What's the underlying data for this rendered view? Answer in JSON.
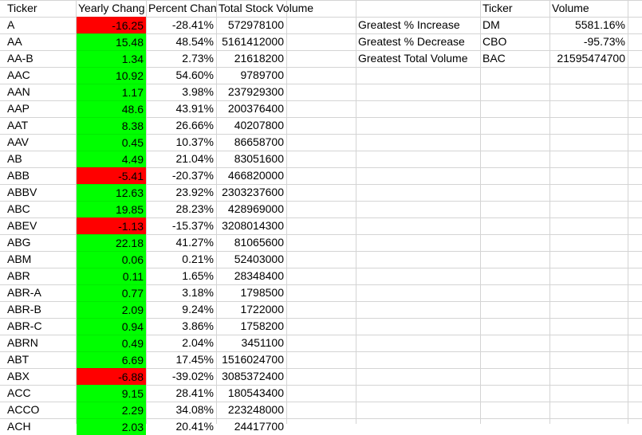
{
  "headers": {
    "ticker": "Ticker",
    "yearly_change": "Yearly Chang",
    "percent_change": "Percent Chan",
    "total_stock_volume": "Total Stock Volume",
    "summary_ticker": "Ticker",
    "summary_volume": "Volume"
  },
  "summary": [
    {
      "label": "Greatest % Increase",
      "ticker": "DM",
      "value": "5581.16%"
    },
    {
      "label": "Greatest % Decrease",
      "ticker": "CBO",
      "value": "-95.73%"
    },
    {
      "label": "Greatest Total Volume",
      "ticker": "BAC",
      "value": "21595474700"
    }
  ],
  "colors": {
    "positive": "#00ff00",
    "negative": "#ff0000",
    "gridline": "#d4d4d4"
  },
  "rows": [
    {
      "ticker": "A",
      "yearly_change": "-16.25",
      "percent_change": "-28.41%",
      "volume": "572978100",
      "sign": "neg"
    },
    {
      "ticker": "AA",
      "yearly_change": "15.48",
      "percent_change": "48.54%",
      "volume": "5161412000",
      "sign": "pos"
    },
    {
      "ticker": "AA-B",
      "yearly_change": "1.34",
      "percent_change": "2.73%",
      "volume": "21618200",
      "sign": "pos"
    },
    {
      "ticker": "AAC",
      "yearly_change": "10.92",
      "percent_change": "54.60%",
      "volume": "9789700",
      "sign": "pos"
    },
    {
      "ticker": "AAN",
      "yearly_change": "1.17",
      "percent_change": "3.98%",
      "volume": "237929300",
      "sign": "pos"
    },
    {
      "ticker": "AAP",
      "yearly_change": "48.6",
      "percent_change": "43.91%",
      "volume": "200376400",
      "sign": "pos"
    },
    {
      "ticker": "AAT",
      "yearly_change": "8.38",
      "percent_change": "26.66%",
      "volume": "40207800",
      "sign": "pos"
    },
    {
      "ticker": "AAV",
      "yearly_change": "0.45",
      "percent_change": "10.37%",
      "volume": "86658700",
      "sign": "pos"
    },
    {
      "ticker": "AB",
      "yearly_change": "4.49",
      "percent_change": "21.04%",
      "volume": "83051600",
      "sign": "pos"
    },
    {
      "ticker": "ABB",
      "yearly_change": "-5.41",
      "percent_change": "-20.37%",
      "volume": "466820000",
      "sign": "neg"
    },
    {
      "ticker": "ABBV",
      "yearly_change": "12.63",
      "percent_change": "23.92%",
      "volume": "2303237600",
      "sign": "pos"
    },
    {
      "ticker": "ABC",
      "yearly_change": "19.85",
      "percent_change": "28.23%",
      "volume": "428969000",
      "sign": "pos"
    },
    {
      "ticker": "ABEV",
      "yearly_change": "-1.13",
      "percent_change": "-15.37%",
      "volume": "3208014300",
      "sign": "neg"
    },
    {
      "ticker": "ABG",
      "yearly_change": "22.18",
      "percent_change": "41.27%",
      "volume": "81065600",
      "sign": "pos"
    },
    {
      "ticker": "ABM",
      "yearly_change": "0.06",
      "percent_change": "0.21%",
      "volume": "52403000",
      "sign": "pos"
    },
    {
      "ticker": "ABR",
      "yearly_change": "0.11",
      "percent_change": "1.65%",
      "volume": "28348400",
      "sign": "pos"
    },
    {
      "ticker": "ABR-A",
      "yearly_change": "0.77",
      "percent_change": "3.18%",
      "volume": "1798500",
      "sign": "pos"
    },
    {
      "ticker": "ABR-B",
      "yearly_change": "2.09",
      "percent_change": "9.24%",
      "volume": "1722000",
      "sign": "pos"
    },
    {
      "ticker": "ABR-C",
      "yearly_change": "0.94",
      "percent_change": "3.86%",
      "volume": "1758200",
      "sign": "pos"
    },
    {
      "ticker": "ABRN",
      "yearly_change": "0.49",
      "percent_change": "2.04%",
      "volume": "3451100",
      "sign": "pos"
    },
    {
      "ticker": "ABT",
      "yearly_change": "6.69",
      "percent_change": "17.45%",
      "volume": "1516024700",
      "sign": "pos"
    },
    {
      "ticker": "ABX",
      "yearly_change": "-6.88",
      "percent_change": "-39.02%",
      "volume": "3085372400",
      "sign": "neg"
    },
    {
      "ticker": "ACC",
      "yearly_change": "9.15",
      "percent_change": "28.41%",
      "volume": "180543400",
      "sign": "pos"
    },
    {
      "ticker": "ACCO",
      "yearly_change": "2.29",
      "percent_change": "34.08%",
      "volume": "223248000",
      "sign": "pos"
    },
    {
      "ticker": "ACH",
      "yearly_change": "2.03",
      "percent_change": "20.41%",
      "volume": "24417700",
      "sign": "pos"
    }
  ]
}
